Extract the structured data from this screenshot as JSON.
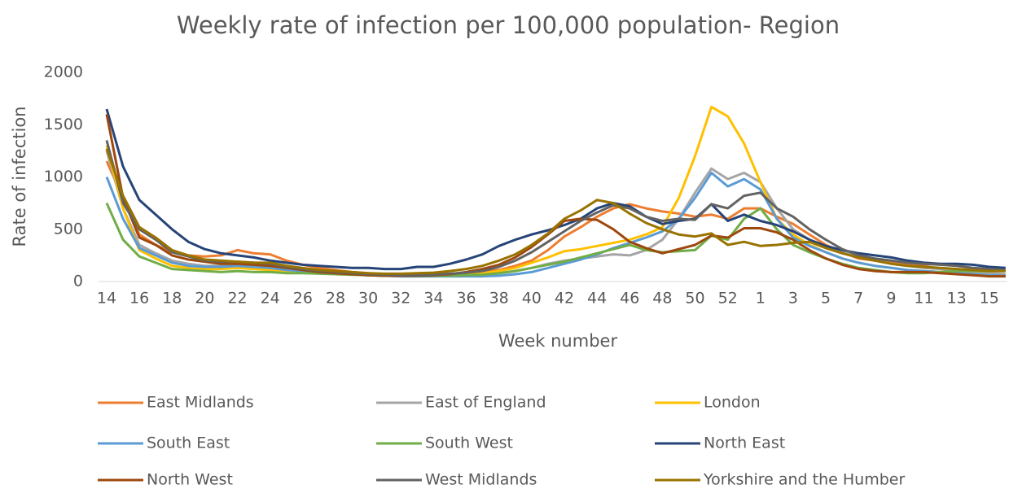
{
  "chart_data": {
    "type": "line",
    "title": "Weekly rate of infection per 100,000 population- Region",
    "x_label": "Week number",
    "y_label": "Rate of infection",
    "categories": [
      "14",
      null,
      "16",
      null,
      "18",
      null,
      "20",
      null,
      "22",
      null,
      "24",
      null,
      "26",
      null,
      "28",
      null,
      "30",
      null,
      "32",
      null,
      "34",
      null,
      "36",
      null,
      "38",
      null,
      "40",
      null,
      "42",
      null,
      "44",
      null,
      "46",
      null,
      "48",
      null,
      "50",
      null,
      "52",
      null,
      "1",
      null,
      "3",
      null,
      "5",
      null,
      "7",
      null,
      "9",
      null,
      "11",
      null,
      "13",
      null,
      "15",
      null
    ],
    "ylim": [
      0,
      2000
    ],
    "yticks": [
      0,
      500,
      1000,
      1500,
      2000
    ],
    "grid": false,
    "series": [
      {
        "name": "East Midlands",
        "color": "#ED7D31",
        "values": [
          1150,
          800,
          450,
          350,
          280,
          250,
          240,
          250,
          300,
          270,
          260,
          200,
          160,
          130,
          110,
          90,
          80,
          70,
          65,
          65,
          70,
          75,
          80,
          90,
          110,
          150,
          200,
          300,
          430,
          520,
          620,
          700,
          740,
          700,
          670,
          650,
          620,
          640,
          600,
          700,
          700,
          620,
          550,
          450,
          350,
          280,
          220,
          200,
          180,
          170,
          150,
          120,
          100,
          80,
          60,
          50
        ]
      },
      {
        "name": "East of England",
        "color": "#A5A5A5",
        "values": [
          1250,
          700,
          350,
          270,
          200,
          170,
          150,
          150,
          160,
          150,
          140,
          120,
          100,
          90,
          80,
          70,
          60,
          55,
          50,
          50,
          50,
          55,
          60,
          65,
          80,
          100,
          130,
          170,
          200,
          220,
          240,
          260,
          250,
          300,
          400,
          600,
          850,
          1080,
          980,
          1040,
          950,
          700,
          500,
          400,
          330,
          280,
          230,
          200,
          170,
          150,
          130,
          120,
          100,
          90,
          80,
          70
        ]
      },
      {
        "name": "London",
        "color": "#FFC000",
        "values": [
          1300,
          700,
          300,
          220,
          150,
          130,
          120,
          120,
          130,
          120,
          110,
          100,
          90,
          80,
          70,
          65,
          60,
          55,
          55,
          55,
          60,
          65,
          70,
          80,
          100,
          130,
          180,
          230,
          290,
          310,
          340,
          370,
          400,
          450,
          520,
          800,
          1200,
          1670,
          1580,
          1320,
          950,
          600,
          450,
          350,
          280,
          220,
          180,
          150,
          130,
          110,
          100,
          90,
          80,
          70,
          60,
          55
        ]
      },
      {
        "name": "South East",
        "color": "#5B9BD5",
        "values": [
          1000,
          600,
          320,
          250,
          180,
          150,
          140,
          140,
          150,
          140,
          130,
          110,
          100,
          90,
          80,
          70,
          60,
          55,
          50,
          50,
          50,
          50,
          50,
          50,
          55,
          70,
          90,
          130,
          170,
          210,
          260,
          320,
          370,
          420,
          480,
          600,
          800,
          1040,
          910,
          980,
          880,
          600,
          420,
          340,
          280,
          220,
          180,
          150,
          130,
          110,
          100,
          90,
          80,
          70,
          60,
          55
        ]
      },
      {
        "name": "South West",
        "color": "#70AD47",
        "values": [
          750,
          400,
          240,
          180,
          120,
          110,
          100,
          90,
          100,
          90,
          90,
          80,
          80,
          75,
          70,
          65,
          60,
          55,
          55,
          55,
          55,
          55,
          60,
          65,
          80,
          100,
          130,
          160,
          190,
          230,
          270,
          310,
          350,
          300,
          280,
          290,
          300,
          440,
          400,
          600,
          700,
          500,
          350,
          280,
          220,
          170,
          130,
          110,
          90,
          80,
          80,
          90,
          100,
          100,
          100,
          100
        ]
      },
      {
        "name": "North East",
        "color": "#264478",
        "values": [
          1650,
          1100,
          780,
          640,
          500,
          380,
          310,
          270,
          250,
          230,
          200,
          180,
          160,
          150,
          140,
          130,
          130,
          120,
          120,
          140,
          140,
          170,
          210,
          260,
          340,
          400,
          450,
          490,
          540,
          600,
          700,
          750,
          720,
          620,
          550,
          580,
          600,
          740,
          580,
          640,
          580,
          540,
          480,
          400,
          340,
          300,
          270,
          250,
          230,
          200,
          180,
          170,
          170,
          160,
          140,
          130
        ]
      },
      {
        "name": "North West",
        "color": "#9E480E",
        "values": [
          1600,
          800,
          420,
          350,
          250,
          210,
          190,
          170,
          170,
          160,
          150,
          130,
          110,
          90,
          80,
          70,
          60,
          55,
          55,
          55,
          60,
          70,
          90,
          120,
          160,
          230,
          330,
          450,
          580,
          600,
          590,
          500,
          380,
          320,
          270,
          310,
          350,
          440,
          420,
          510,
          510,
          470,
          400,
          300,
          220,
          160,
          120,
          100,
          90,
          90,
          90,
          80,
          70,
          60,
          50,
          50
        ]
      },
      {
        "name": "West Midlands",
        "color": "#636363",
        "values": [
          1350,
          750,
          500,
          400,
          280,
          240,
          200,
          190,
          190,
          180,
          170,
          140,
          120,
          100,
          90,
          80,
          70,
          65,
          60,
          60,
          65,
          75,
          85,
          100,
          140,
          200,
          280,
          380,
          480,
          580,
          660,
          730,
          700,
          620,
          580,
          600,
          590,
          740,
          700,
          820,
          850,
          700,
          620,
          500,
          400,
          310,
          250,
          220,
          200,
          180,
          170,
          160,
          150,
          130,
          120,
          110
        ]
      },
      {
        "name": "Yorkshire and the Humber",
        "color": "#997300",
        "values": [
          1270,
          820,
          520,
          420,
          300,
          250,
          210,
          200,
          190,
          180,
          180,
          150,
          130,
          110,
          100,
          90,
          80,
          75,
          75,
          80,
          85,
          100,
          120,
          150,
          200,
          260,
          350,
          460,
          600,
          680,
          780,
          750,
          650,
          560,
          500,
          450,
          430,
          460,
          350,
          380,
          340,
          350,
          370,
          380,
          320,
          270,
          230,
          200,
          170,
          150,
          140,
          130,
          120,
          110,
          100,
          100
        ]
      }
    ]
  }
}
